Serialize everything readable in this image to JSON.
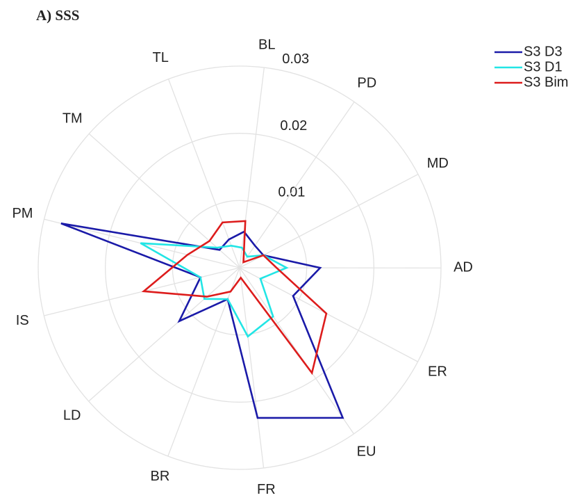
{
  "chart_data": {
    "type": "radar",
    "title": "A)  SSS",
    "categories": [
      "BL",
      "PD",
      "MD",
      "AD",
      "ER",
      "EU",
      "FR",
      "BR",
      "LD",
      "IS",
      "PM",
      "TM",
      "TL"
    ],
    "ylim": [
      0,
      0.03
    ],
    "yticks": [
      0.01,
      0.02,
      0.03
    ],
    "grid": true,
    "series": [
      {
        "name": "S3 D3",
        "color": "#1a1aa8",
        "values": [
          0.0054,
          0.004,
          0.004,
          0.012,
          0.009,
          0.0271,
          0.0225,
          0.005,
          0.012,
          0.006,
          0.0274,
          0.004,
          0.0045
        ]
      },
      {
        "name": "S3 D1",
        "color": "#22e5e5",
        "values": [
          0.003,
          0.002,
          0.004,
          0.007,
          0.0035,
          0.0088,
          0.0103,
          0.005,
          0.007,
          0.006,
          0.0152,
          0.0045,
          0.0035
        ]
      },
      {
        "name": "S3 Bim",
        "color": "#dd1c1c",
        "values": [
          0.007,
          0.001,
          0.004,
          0.0055,
          0.0146,
          0.019,
          0.0015,
          0.0038,
          0.0065,
          0.0147,
          0.008,
          0.006,
          0.0072
        ]
      }
    ]
  }
}
